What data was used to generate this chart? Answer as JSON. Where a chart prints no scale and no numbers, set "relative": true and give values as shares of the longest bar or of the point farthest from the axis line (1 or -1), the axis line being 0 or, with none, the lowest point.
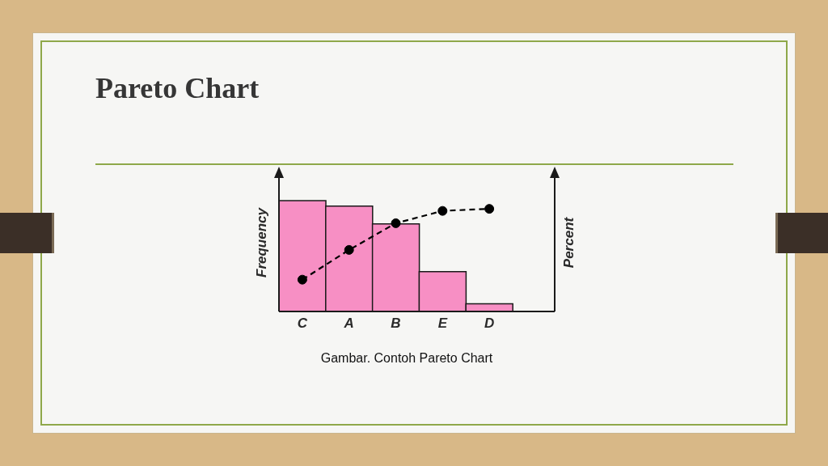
{
  "chart_data": {
    "type": "bar",
    "title": "Pareto Chart",
    "ylabel": "Frequency",
    "y2label": "Percent",
    "categories": [
      "C",
      "A",
      "B",
      "E",
      "D"
    ],
    "relative": true,
    "marker": "circle",
    "line_style": "dashed",
    "series": [
      {
        "color": "#f78fc4",
        "values": [
          1,
          0.95,
          0.79,
          0.36,
          0.07
        ]
      },
      {
        "type": "line",
        "axis": "y2",
        "color": "#000000",
        "values": [
          0.31,
          0.6,
          0.86,
          0.98,
          1
        ]
      }
    ],
    "annotations": [
      "Gambar. Contoh Pareto Chart"
    ]
  }
}
